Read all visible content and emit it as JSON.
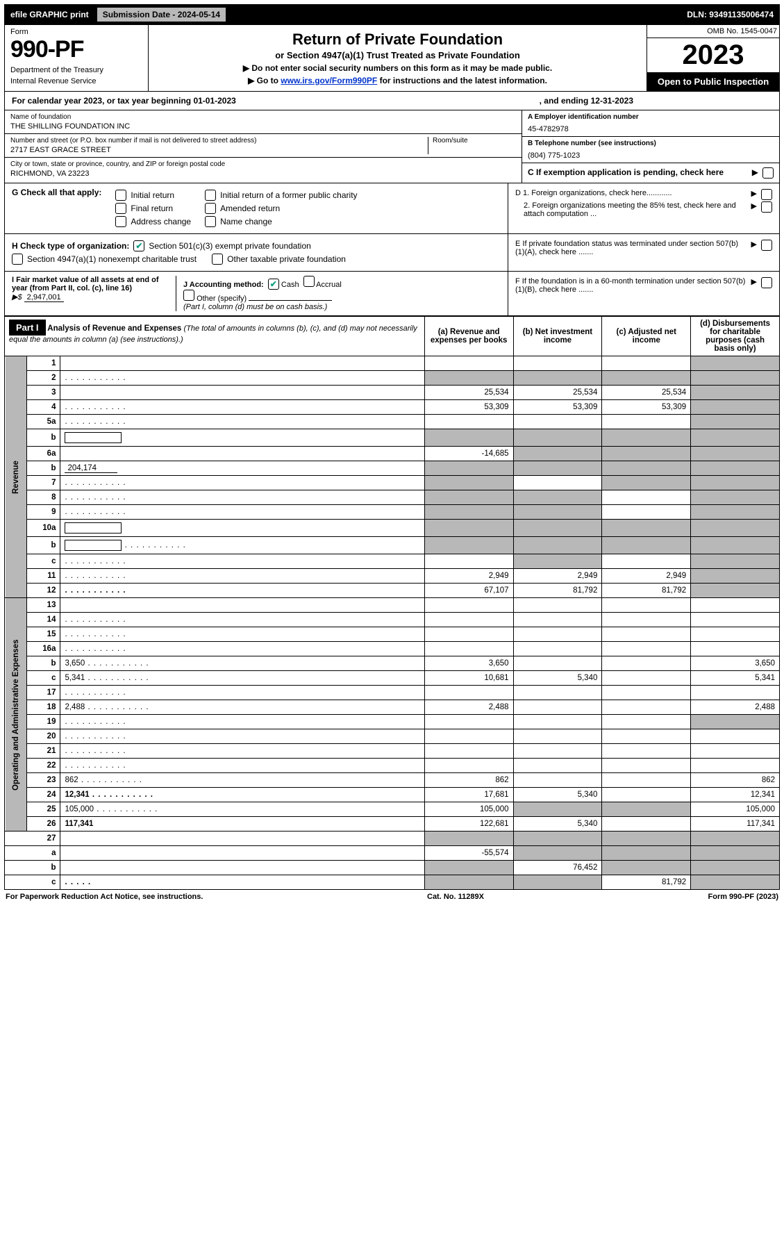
{
  "top_bar": {
    "efile": "efile GRAPHIC print",
    "submission_label": "Submission Date - 2024-05-14",
    "dln": "DLN: 93491135006474"
  },
  "header": {
    "form_label": "Form",
    "form_number": "990-PF",
    "dept1": "Department of the Treasury",
    "dept2": "Internal Revenue Service",
    "title": "Return of Private Foundation",
    "subtitle": "or Section 4947(a)(1) Trust Treated as Private Foundation",
    "instr1": "▶ Do not enter social security numbers on this form as it may be made public.",
    "instr2_pre": "▶ Go to ",
    "instr2_link": "www.irs.gov/Form990PF",
    "instr2_post": " for instructions and the latest information.",
    "omb": "OMB No. 1545-0047",
    "year": "2023",
    "open": "Open to Public Inspection"
  },
  "calendar": {
    "text": "For calendar year 2023, or tax year beginning 01-01-2023",
    "ending": ", and ending 12-31-2023"
  },
  "identity": {
    "name_label": "Name of foundation",
    "name": "THE SHILLING FOUNDATION INC",
    "street_label": "Number and street (or P.O. box number if mail is not delivered to street address)",
    "street": "2717 EAST GRACE STREET",
    "room_label": "Room/suite",
    "city_label": "City or town, state or province, country, and ZIP or foreign postal code",
    "city": "RICHMOND, VA  23223",
    "ein_label": "A Employer identification number",
    "ein": "45-4782978",
    "phone_label": "B Telephone number (see instructions)",
    "phone": "(804) 775-1023",
    "pending_label": "C If exemption application is pending, check here"
  },
  "sectionG": {
    "label": "G Check all that apply:",
    "opts": [
      "Initial return",
      "Final return",
      "Address change",
      "Initial return of a former public charity",
      "Amended return",
      "Name change"
    ]
  },
  "sectionH": {
    "label": "H Check type of organization:",
    "opt1": "Section 501(c)(3) exempt private foundation",
    "opt2": "Section 4947(a)(1) nonexempt charitable trust",
    "opt3": "Other taxable private foundation"
  },
  "sectionI": {
    "label": "I Fair market value of all assets at end of year (from Part II, col. (c), line 16)",
    "arrow": "▶$",
    "value": "2,947,001"
  },
  "sectionJ": {
    "label": "J Accounting method:",
    "cash": "Cash",
    "accrual": "Accrual",
    "other": "Other (specify)",
    "note": "(Part I, column (d) must be on cash basis.)"
  },
  "sectionD": {
    "d1": "D 1. Foreign organizations, check here............",
    "d2": "2. Foreign organizations meeting the 85% test, check here and attach computation ...",
    "e": "E  If private foundation status was terminated under section 507(b)(1)(A), check here .......",
    "f": "F  If the foundation is in a 60-month termination under section 507(b)(1)(B), check here ......."
  },
  "part1": {
    "label": "Part I",
    "title": "Analysis of Revenue and Expenses",
    "subtitle": "(The total of amounts in columns (b), (c), and (d) may not necessarily equal the amounts in column (a) (see instructions).)",
    "col_a": "(a)  Revenue and expenses per books",
    "col_b": "(b)  Net investment income",
    "col_c": "(c)  Adjusted net income",
    "col_d": "(d)  Disbursements for charitable purposes (cash basis only)",
    "side_revenue": "Revenue",
    "side_expenses": "Operating and Administrative Expenses",
    "rows": [
      {
        "n": "1",
        "d": "",
        "a": "",
        "b": "",
        "c": "",
        "sd": true
      },
      {
        "n": "2",
        "d": "",
        "dots": true,
        "a": "",
        "b": "",
        "c": "",
        "sd": true,
        "sa": true,
        "sb": true,
        "sc": true
      },
      {
        "n": "3",
        "d": "",
        "a": "25,534",
        "b": "25,534",
        "c": "25,534",
        "sd": true
      },
      {
        "n": "4",
        "d": "",
        "dots": true,
        "a": "53,309",
        "b": "53,309",
        "c": "53,309",
        "sd": true
      },
      {
        "n": "5a",
        "d": "",
        "dots": true,
        "a": "",
        "b": "",
        "c": "",
        "sd": true
      },
      {
        "n": "b",
        "d": "",
        "box": true,
        "a": "",
        "b": "",
        "c": "",
        "sd": true,
        "sa": true,
        "sb": true,
        "sc": true
      },
      {
        "n": "6a",
        "d": "",
        "a": "-14,685",
        "b": "",
        "c": "",
        "sd": true,
        "sb": true,
        "sc": true
      },
      {
        "n": "b",
        "d": "",
        "inline": "204,174",
        "a": "",
        "b": "",
        "c": "",
        "sd": true,
        "sa": true,
        "sb": true,
        "sc": true
      },
      {
        "n": "7",
        "d": "",
        "dots": true,
        "a": "",
        "b": "",
        "c": "",
        "sa": true,
        "sc": true,
        "sd": true
      },
      {
        "n": "8",
        "d": "",
        "dots": true,
        "a": "",
        "b": "",
        "c": "",
        "sa": true,
        "sb": true,
        "sd": true
      },
      {
        "n": "9",
        "d": "",
        "dots": true,
        "a": "",
        "b": "",
        "c": "",
        "sa": true,
        "sb": true,
        "sd": true
      },
      {
        "n": "10a",
        "d": "",
        "box": true,
        "a": "",
        "b": "",
        "c": "",
        "sa": true,
        "sb": true,
        "sc": true,
        "sd": true
      },
      {
        "n": "b",
        "d": "",
        "dots": true,
        "box": true,
        "a": "",
        "b": "",
        "c": "",
        "sa": true,
        "sb": true,
        "sc": true,
        "sd": true
      },
      {
        "n": "c",
        "d": "",
        "dots": true,
        "a": "",
        "b": "",
        "c": "",
        "sb": true,
        "sd": true
      },
      {
        "n": "11",
        "d": "",
        "dots": true,
        "a": "2,949",
        "b": "2,949",
        "c": "2,949",
        "sd": true
      },
      {
        "n": "12",
        "d": "",
        "dots": true,
        "bold": true,
        "a": "67,107",
        "b": "81,792",
        "c": "81,792",
        "sd": true
      }
    ],
    "exp_rows": [
      {
        "n": "13",
        "d": "",
        "a": "",
        "b": "",
        "c": ""
      },
      {
        "n": "14",
        "d": "",
        "dots": true,
        "a": "",
        "b": "",
        "c": ""
      },
      {
        "n": "15",
        "d": "",
        "dots": true,
        "a": "",
        "b": "",
        "c": ""
      },
      {
        "n": "16a",
        "d": "",
        "dots": true,
        "a": "",
        "b": "",
        "c": ""
      },
      {
        "n": "b",
        "d": "3,650",
        "dots": true,
        "a": "3,650",
        "b": "",
        "c": ""
      },
      {
        "n": "c",
        "d": "5,341",
        "dots": true,
        "a": "10,681",
        "b": "5,340",
        "c": ""
      },
      {
        "n": "17",
        "d": "",
        "dots": true,
        "a": "",
        "b": "",
        "c": ""
      },
      {
        "n": "18",
        "d": "2,488",
        "dots": true,
        "a": "2,488",
        "b": "",
        "c": ""
      },
      {
        "n": "19",
        "d": "",
        "dots": true,
        "a": "",
        "b": "",
        "c": "",
        "sd": true
      },
      {
        "n": "20",
        "d": "",
        "dots": true,
        "a": "",
        "b": "",
        "c": ""
      },
      {
        "n": "21",
        "d": "",
        "dots": true,
        "a": "",
        "b": "",
        "c": ""
      },
      {
        "n": "22",
        "d": "",
        "dots": true,
        "a": "",
        "b": "",
        "c": ""
      },
      {
        "n": "23",
        "d": "862",
        "dots": true,
        "a": "862",
        "b": "",
        "c": ""
      },
      {
        "n": "24",
        "d": "12,341",
        "dots": true,
        "bold": true,
        "a": "17,681",
        "b": "5,340",
        "c": ""
      },
      {
        "n": "25",
        "d": "105,000",
        "dots": true,
        "a": "105,000",
        "b": "",
        "c": "",
        "sb": true,
        "sc": true
      },
      {
        "n": "26",
        "d": "117,341",
        "bold": true,
        "a": "122,681",
        "b": "5,340",
        "c": ""
      }
    ],
    "bottom_rows": [
      {
        "n": "27",
        "d": "",
        "a": "",
        "b": "",
        "c": "",
        "sa": true,
        "sb": true,
        "sc": true,
        "sd": true
      },
      {
        "n": "a",
        "d": "",
        "bold": true,
        "a": "-55,574",
        "b": "",
        "c": "",
        "sb": true,
        "sc": true,
        "sd": true
      },
      {
        "n": "b",
        "d": "",
        "bold": true,
        "a": "",
        "b": "76,452",
        "c": "",
        "sa": true,
        "sc": true,
        "sd": true
      },
      {
        "n": "c",
        "d": "",
        "dots": true,
        "bold": true,
        "a": "",
        "b": "",
        "c": "81,792",
        "sa": true,
        "sb": true,
        "sd": true
      }
    ]
  },
  "footer": {
    "left": "For Paperwork Reduction Act Notice, see instructions.",
    "mid": "Cat. No. 11289X",
    "right": "Form 990-PF (2023)"
  }
}
